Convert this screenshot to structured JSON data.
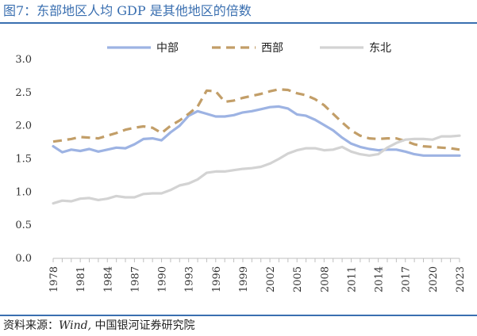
{
  "figure": {
    "title": "图7：东部地区人均 GDP 是其他地区的倍数",
    "source_prefix": "资料来源：",
    "source_en": "Wind,",
    "source_cn": " 中国银河证券研究院"
  },
  "chart_data": {
    "type": "line",
    "title": "",
    "xlabel": "",
    "ylabel": "",
    "ylim": [
      0.0,
      3.0
    ],
    "y_ticks": [
      "0.0",
      "0.5",
      "1.0",
      "1.5",
      "2.0",
      "2.5",
      "3.0"
    ],
    "grid": false,
    "legend_position": "top",
    "x": [
      1978,
      1979,
      1980,
      1981,
      1982,
      1983,
      1984,
      1985,
      1986,
      1987,
      1988,
      1989,
      1990,
      1991,
      1992,
      1993,
      1994,
      1995,
      1996,
      1997,
      1998,
      1999,
      2000,
      2001,
      2002,
      2003,
      2004,
      2005,
      2006,
      2007,
      2008,
      2009,
      2010,
      2011,
      2012,
      2013,
      2014,
      2015,
      2016,
      2017,
      2018,
      2019,
      2020,
      2021,
      2022,
      2023
    ],
    "x_tick_labels": [
      "1978",
      "1981",
      "1984",
      "1987",
      "1990",
      "1993",
      "1996",
      "1999",
      "2002",
      "2005",
      "2008",
      "2011",
      "2014",
      "2017",
      "2020",
      "2023"
    ],
    "series": [
      {
        "name": "中部",
        "color": "#9db3e3",
        "style": "solid",
        "values": [
          1.69,
          1.6,
          1.64,
          1.62,
          1.65,
          1.61,
          1.64,
          1.67,
          1.66,
          1.72,
          1.8,
          1.81,
          1.78,
          1.9,
          2.0,
          2.15,
          2.22,
          2.18,
          2.14,
          2.14,
          2.16,
          2.2,
          2.22,
          2.25,
          2.28,
          2.29,
          2.26,
          2.17,
          2.15,
          2.09,
          2.01,
          1.93,
          1.82,
          1.73,
          1.68,
          1.65,
          1.63,
          1.64,
          1.64,
          1.61,
          1.57,
          1.55,
          1.55,
          1.55,
          1.55,
          1.55
        ]
      },
      {
        "name": "西部",
        "color": "#c29e68",
        "style": "dashed",
        "values": [
          1.76,
          1.78,
          1.8,
          1.83,
          1.82,
          1.81,
          1.85,
          1.89,
          1.94,
          1.97,
          1.99,
          1.97,
          1.89,
          2.0,
          2.08,
          2.18,
          2.29,
          2.53,
          2.52,
          2.36,
          2.38,
          2.42,
          2.45,
          2.48,
          2.52,
          2.55,
          2.54,
          2.49,
          2.46,
          2.4,
          2.31,
          2.18,
          2.05,
          1.93,
          1.85,
          1.81,
          1.8,
          1.81,
          1.81,
          1.77,
          1.72,
          1.69,
          1.68,
          1.67,
          1.66,
          1.64
        ]
      },
      {
        "name": "东北",
        "color": "#d3d3d3",
        "style": "solid",
        "values": [
          0.83,
          0.87,
          0.86,
          0.9,
          0.91,
          0.88,
          0.9,
          0.94,
          0.92,
          0.92,
          0.97,
          0.98,
          0.98,
          1.03,
          1.1,
          1.13,
          1.19,
          1.29,
          1.31,
          1.31,
          1.33,
          1.35,
          1.36,
          1.38,
          1.43,
          1.5,
          1.58,
          1.63,
          1.66,
          1.66,
          1.63,
          1.64,
          1.68,
          1.61,
          1.57,
          1.55,
          1.57,
          1.67,
          1.74,
          1.79,
          1.8,
          1.8,
          1.79,
          1.84,
          1.84,
          1.85
        ]
      }
    ]
  }
}
